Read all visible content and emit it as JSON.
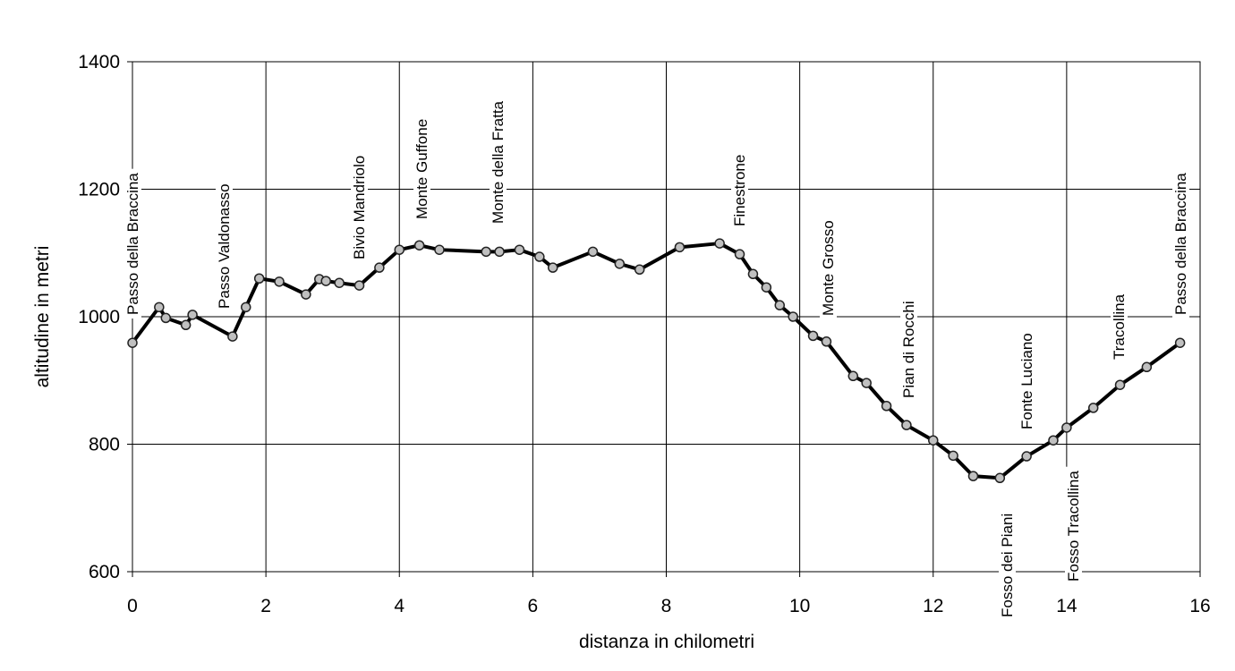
{
  "chart_data": {
    "type": "line",
    "xlabel": "distanza in chilometri",
    "ylabel": "altitudine  in metri",
    "xlim": [
      0,
      16
    ],
    "xticks": [
      0,
      2,
      4,
      6,
      8,
      10,
      12,
      14,
      16
    ],
    "ylim": [
      600,
      1400
    ],
    "yticks": [
      600,
      800,
      1000,
      1200,
      1400
    ],
    "grid": true,
    "series": [
      {
        "color": "#000000",
        "marker_color": "#c0c0c0",
        "x": [
          0,
          0.4,
          0.5,
          0.8,
          0.9,
          1.5,
          1.7,
          1.9,
          2.2,
          2.6,
          2.8,
          2.9,
          3.1,
          3.4,
          3.7,
          4.0,
          4.3,
          4.6,
          5.3,
          5.5,
          5.8,
          6.1,
          6.3,
          6.9,
          7.3,
          7.6,
          8.2,
          8.8,
          9.1,
          9.3,
          9.5,
          9.7,
          9.9,
          10.2,
          10.4,
          10.8,
          11.0,
          11.3,
          11.6,
          12.0,
          12.3,
          12.6,
          13.0,
          13.4,
          13.8,
          14.0,
          14.4,
          14.8,
          15.2,
          15.7
        ],
        "values": [
          959,
          1015,
          998,
          987,
          1003,
          969,
          1015,
          1060,
          1055,
          1035,
          1059,
          1056,
          1053,
          1049,
          1077,
          1105,
          1112,
          1105,
          1102,
          1102,
          1105,
          1094,
          1077,
          1102,
          1083,
          1074,
          1109,
          1115,
          1098,
          1067,
          1046,
          1018,
          1000,
          970,
          961,
          907,
          896,
          860,
          830,
          806,
          782,
          750,
          747,
          781,
          806,
          826,
          857,
          893,
          921,
          959
        ]
      }
    ],
    "annotations": [
      "Passo della Braccina",
      "Passo Valdonasso",
      "Bivio Mandriolo",
      "Monte Guffone",
      "Monte della Fratta",
      "Finestrone",
      "Monte Grosso",
      "Pian di Rocchi",
      "Fonte Luciano",
      "Fosso dei Piani",
      "Fosso Tracollina",
      "Tracollina",
      "Passo della Braccina"
    ]
  }
}
